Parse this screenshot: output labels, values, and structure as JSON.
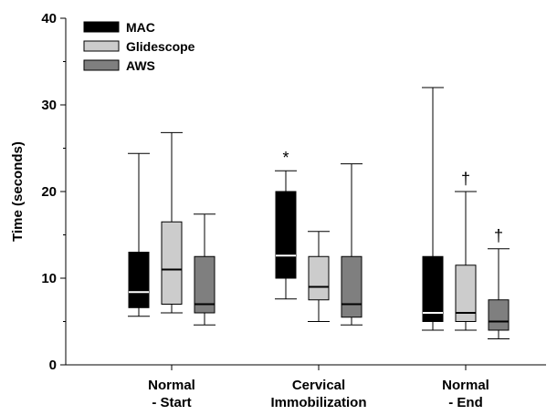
{
  "chart_data": {
    "type": "box",
    "ylabel": "Time (seconds)",
    "ylim": [
      0,
      40
    ],
    "yticks": [
      0,
      10,
      20,
      30,
      40
    ],
    "categories": [
      "Normal\n- Start",
      "Cervical\nImmobilization",
      "Normal\n- End"
    ],
    "legend": {
      "placement": "top-left"
    },
    "series": [
      {
        "name": "MAC",
        "color": "#000000",
        "median_color": "#ffffff",
        "boxes": [
          {
            "min": 5.6,
            "q1": 6.6,
            "median": 8.4,
            "q3": 13.0,
            "max": 24.4
          },
          {
            "min": 7.6,
            "q1": 10.0,
            "median": 12.6,
            "q3": 20.0,
            "max": 22.4
          },
          {
            "min": 4.0,
            "q1": 5.0,
            "median": 6.0,
            "q3": 12.5,
            "max": 32.0
          }
        ]
      },
      {
        "name": "Glidescope",
        "color": "#cccccc",
        "median_color": "#000000",
        "boxes": [
          {
            "min": 6.0,
            "q1": 7.0,
            "median": 11.0,
            "q3": 16.5,
            "max": 26.8
          },
          {
            "min": 5.0,
            "q1": 7.5,
            "median": 9.0,
            "q3": 12.5,
            "max": 15.4
          },
          {
            "min": 4.0,
            "q1": 5.0,
            "median": 6.0,
            "q3": 11.5,
            "max": 20.0
          }
        ]
      },
      {
        "name": "AWS",
        "color": "#7f7f7f",
        "median_color": "#000000",
        "boxes": [
          {
            "min": 4.6,
            "q1": 6.0,
            "median": 7.0,
            "q3": 12.5,
            "max": 17.4
          },
          {
            "min": 4.6,
            "q1": 5.5,
            "median": 7.0,
            "q3": 12.5,
            "max": 23.2
          },
          {
            "min": 3.0,
            "q1": 4.0,
            "median": 5.0,
            "q3": 7.5,
            "max": 13.4
          }
        ]
      }
    ],
    "annotations": [
      {
        "text": "*",
        "category": 1,
        "series": 0,
        "y": 22.4
      },
      {
        "text": "†",
        "category": 2,
        "series": 1,
        "y": 20.0
      },
      {
        "text": "†",
        "category": 2,
        "series": 2,
        "y": 13.4
      }
    ]
  }
}
